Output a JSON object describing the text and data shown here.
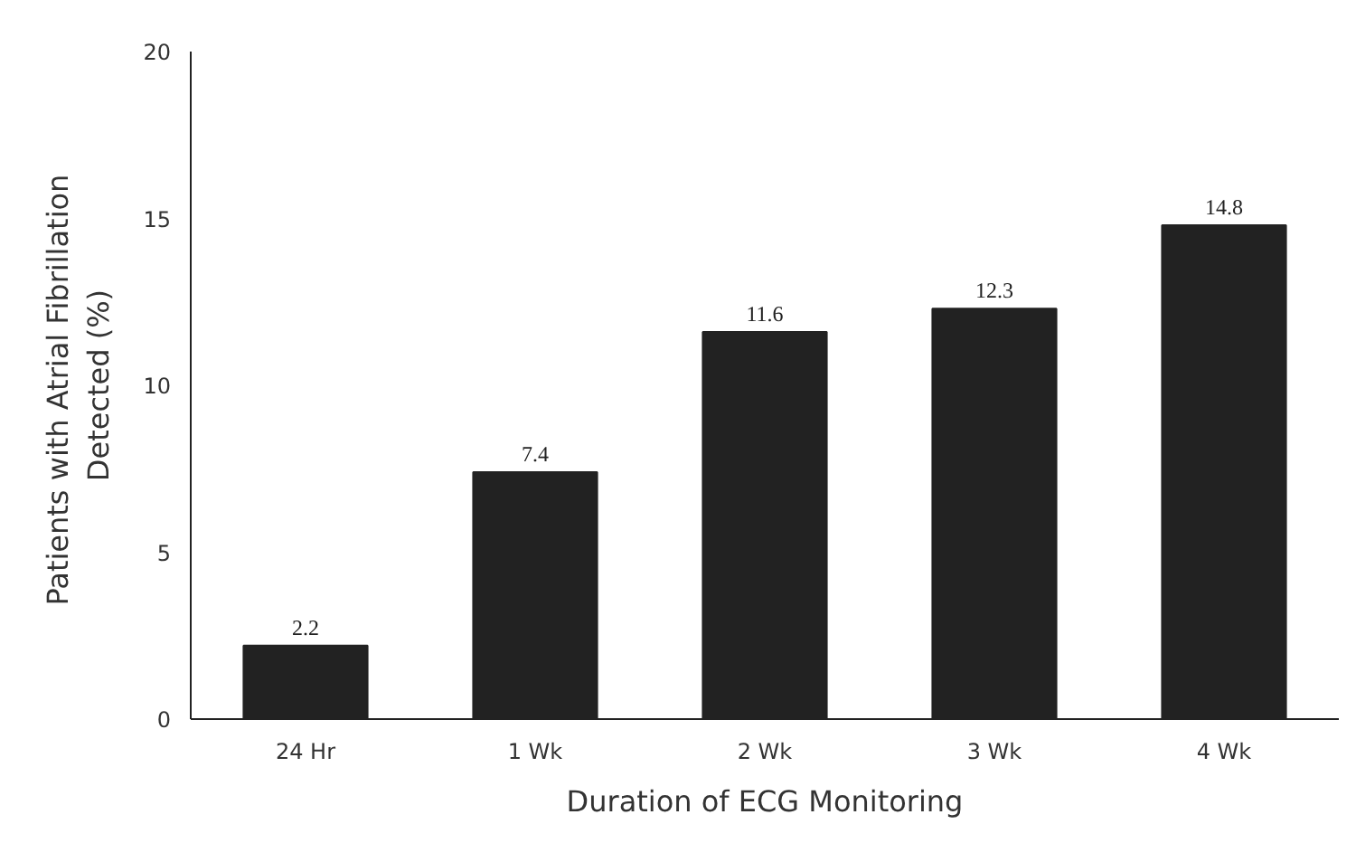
{
  "chart_data": {
    "type": "bar",
    "xlabel": "Duration of ECG Monitoring",
    "ylabel": "Patients with Atrial  Fibrillation\nDetected (%)",
    "categories": [
      "24 Hr",
      "1 Wk",
      "2 Wk",
      "3 Wk",
      "4 Wk"
    ],
    "values": [
      2.2,
      7.4,
      11.6,
      12.3,
      14.8
    ],
    "color": "#222222",
    "ylim": [
      0,
      20
    ],
    "yticks": [
      0,
      5,
      10,
      15,
      20
    ],
    "data_labels": true,
    "grid": false
  }
}
